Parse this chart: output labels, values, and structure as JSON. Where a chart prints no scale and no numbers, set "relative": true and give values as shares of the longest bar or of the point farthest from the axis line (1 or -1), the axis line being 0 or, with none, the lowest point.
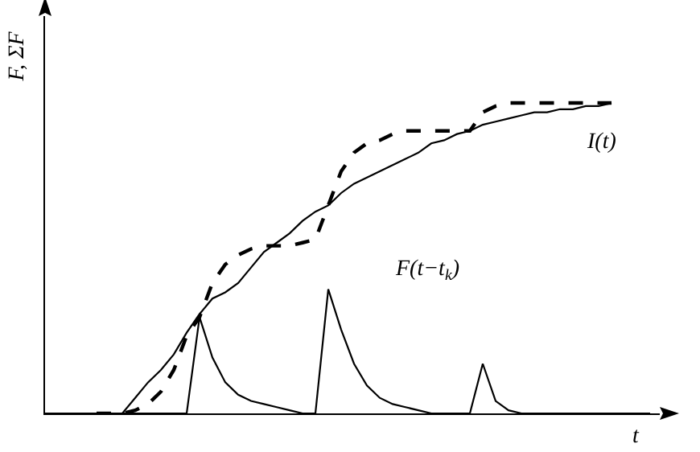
{
  "chart_data": {
    "type": "line",
    "relative": true,
    "xlabel": "t",
    "ylabel": "F, ΣF",
    "tick_labels": false,
    "marker": "none",
    "categories": [
      null,
      null,
      null,
      null,
      null,
      null,
      null,
      null,
      null,
      null,
      null,
      null,
      null,
      null,
      null,
      null,
      null,
      null,
      null,
      null,
      null,
      null,
      null,
      null,
      null,
      null,
      null,
      null,
      null,
      null,
      null,
      null,
      null,
      null,
      null,
      null,
      null,
      null,
      null,
      null,
      null,
      null,
      null,
      null,
      null,
      null,
      null,
      null
    ],
    "series": [
      {
        "color": "#000000",
        "line_style": "solid",
        "values": [
          null,
          null,
          null,
          null,
          null,
          null,
          0,
          0.05,
          0.1,
          0.14,
          0.19,
          0.26,
          0.32,
          0.37,
          0.39,
          0.42,
          0.47,
          0.52,
          0.55,
          0.58,
          0.62,
          0.65,
          0.67,
          0.71,
          0.74,
          0.76,
          0.78,
          0.8,
          0.82,
          0.84,
          0.87,
          0.88,
          0.9,
          0.91,
          0.93,
          0.94,
          0.95,
          0.96,
          0.97,
          0.97,
          0.98,
          0.98,
          0.99,
          0.99,
          1.0,
          null,
          null,
          null
        ]
      },
      {
        "color": "#000000",
        "line_style": "dashed",
        "values": [
          null,
          null,
          null,
          null,
          0,
          0,
          0,
          0.01,
          0.03,
          0.07,
          0.14,
          0.25,
          0.31,
          0.42,
          0.48,
          0.51,
          0.53,
          0.54,
          0.54,
          0.54,
          0.55,
          0.56,
          0.67,
          0.78,
          0.84,
          0.87,
          0.88,
          0.9,
          0.91,
          0.91,
          0.91,
          0.91,
          0.91,
          0.91,
          0.97,
          0.99,
          1.0,
          1.0,
          1.0,
          1.0,
          1.0,
          1.0,
          1.0,
          1.0,
          1.0,
          null,
          null,
          null
        ]
      },
      {
        "color": "#000000",
        "line_style": "solid",
        "values": [
          0,
          0,
          0,
          0,
          0,
          0,
          0,
          0,
          0,
          0,
          0,
          0,
          0.31,
          0.18,
          0.1,
          0.06,
          0.04,
          0.03,
          0.02,
          0.01,
          0,
          0,
          0.4,
          0.27,
          0.16,
          0.09,
          0.05,
          0.03,
          0.02,
          0.01,
          0,
          0,
          0,
          0,
          0.16,
          0.04,
          0.01,
          0,
          0,
          0,
          0,
          0,
          0,
          0,
          0,
          0,
          0,
          0
        ]
      }
    ],
    "annotations": [
      "I(t)",
      "F(t−t$_{k}$)"
    ]
  }
}
